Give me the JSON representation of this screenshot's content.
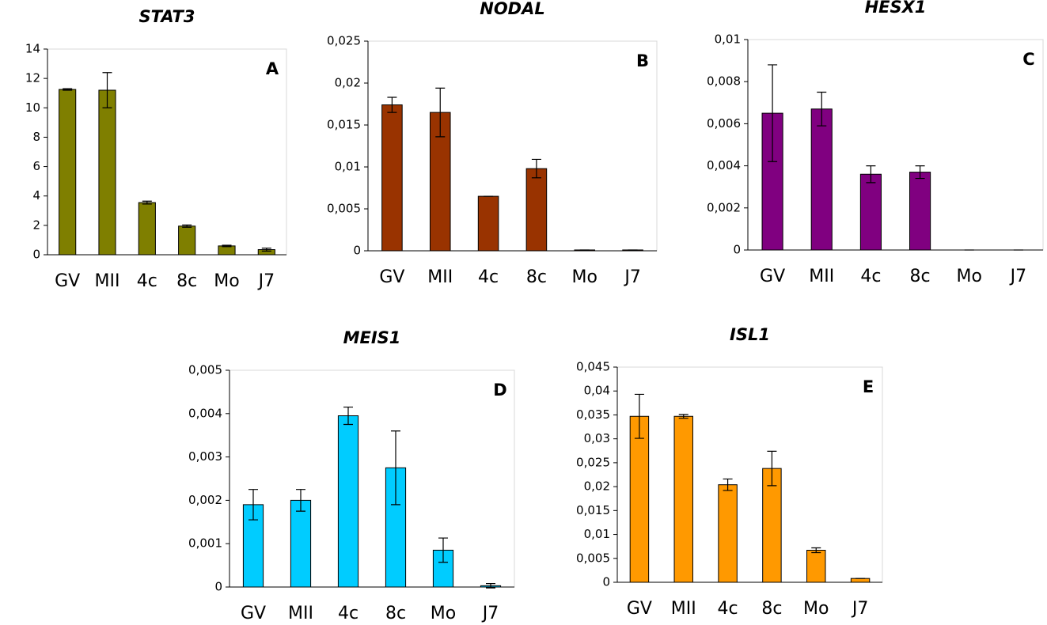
{
  "chart_data": [
    {
      "type": "bar",
      "title": "STAT3",
      "annotation": "A",
      "color": "#7f7f00",
      "categories": [
        "GV",
        "MII",
        "4c",
        "8c",
        "Mo",
        "J7"
      ],
      "values": [
        11.25,
        11.2,
        3.55,
        1.95,
        0.6,
        0.35
      ],
      "errors": [
        0.05,
        1.2,
        0.1,
        0.08,
        0.05,
        0.1
      ],
      "ylim": [
        0,
        14
      ],
      "yticks": [
        0,
        2,
        4,
        6,
        8,
        10,
        12,
        14
      ]
    },
    {
      "type": "bar",
      "title": "NODAL",
      "annotation": "B",
      "color": "#993300",
      "categories": [
        "GV",
        "MII",
        "4c",
        "8c",
        "Mo",
        "J7"
      ],
      "values": [
        0.0174,
        0.0165,
        0.0065,
        0.0098,
        0.0001,
        0.0001
      ],
      "errors": [
        0.0009,
        0.0029,
        0,
        0.0011,
        0,
        0
      ],
      "ylim": [
        0,
        0.025
      ],
      "yticks": [
        0,
        {
          "value": 0.005,
          "label": "0,005"
        },
        {
          "value": 0.01,
          "label": "0,01"
        },
        {
          "value": 0.015,
          "label": "0,015"
        },
        {
          "value": 0.02,
          "label": "0,02"
        },
        {
          "value": 0.025,
          "label": "0,025"
        }
      ]
    },
    {
      "type": "bar",
      "title": "HESX1",
      "annotation": "C",
      "color": "#800080",
      "categories": [
        "GV",
        "MII",
        "4c",
        "8c",
        "Mo",
        "J7"
      ],
      "values": [
        0.0065,
        0.0067,
        0.0036,
        0.0037,
        0,
        0
      ],
      "errors": [
        0.0023,
        0.0008,
        0.0004,
        0.0003,
        0,
        0
      ],
      "ylim": [
        0,
        0.01
      ],
      "yticks": [
        0,
        {
          "value": 0.002,
          "label": "0,002"
        },
        {
          "value": 0.004,
          "label": "0,004"
        },
        {
          "value": 0.006,
          "label": "0,006"
        },
        {
          "value": 0.008,
          "label": "0,008"
        },
        {
          "value": 0.01,
          "label": "0,01"
        }
      ]
    },
    {
      "type": "bar",
      "title": "MEIS1",
      "annotation": "D",
      "color": "#00ccff",
      "categories": [
        "GV",
        "MII",
        "4c",
        "8c",
        "Mo",
        "J7"
      ],
      "values": [
        0.0019,
        0.002,
        0.00395,
        0.00275,
        0.00085,
        3e-05
      ],
      "errors": [
        0.00035,
        0.00025,
        0.0002,
        0.00085,
        0.00028,
        5e-05
      ],
      "ylim": [
        0,
        0.005
      ],
      "yticks": [
        0,
        {
          "value": 0.001,
          "label": "0,001"
        },
        {
          "value": 0.002,
          "label": "0,002"
        },
        {
          "value": 0.003,
          "label": "0,003"
        },
        {
          "value": 0.004,
          "label": "0,004"
        },
        {
          "value": 0.005,
          "label": "0,005"
        }
      ]
    },
    {
      "type": "bar",
      "title": "ISL1",
      "annotation": "E",
      "color": "#ff9900",
      "categories": [
        "GV",
        "MII",
        "4c",
        "8c",
        "Mo",
        "J7"
      ],
      "values": [
        0.0347,
        0.0347,
        0.0204,
        0.0238,
        0.0067,
        0.0008
      ],
      "errors": [
        0.0046,
        0.0004,
        0.0012,
        0.0036,
        0.0005,
        0
      ],
      "ylim": [
        0,
        0.045
      ],
      "yticks": [
        0,
        {
          "value": 0.005,
          "label": "0,005"
        },
        {
          "value": 0.01,
          "label": "0,01"
        },
        {
          "value": 0.015,
          "label": "0,015"
        },
        {
          "value": 0.02,
          "label": "0,02"
        },
        {
          "value": 0.025,
          "label": "0,025"
        },
        {
          "value": 0.03,
          "label": "0,03"
        },
        {
          "value": 0.035,
          "label": "0,035"
        },
        {
          "value": 0.04,
          "label": "0,04"
        },
        {
          "value": 0.045,
          "label": "0,045"
        }
      ]
    }
  ]
}
